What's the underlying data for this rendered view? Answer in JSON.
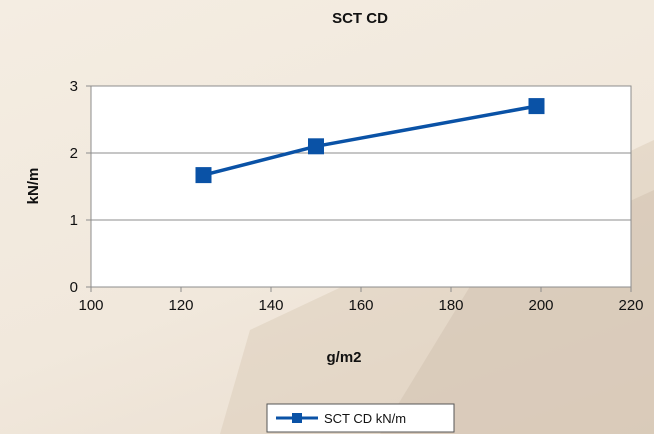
{
  "chart_data": {
    "type": "line",
    "title": "SCT CD",
    "xlabel": "g/m2",
    "ylabel": "kN/m",
    "xlim": [
      100,
      220
    ],
    "ylim": [
      0,
      3
    ],
    "xticks": [
      "100",
      "120",
      "140",
      "160",
      "180",
      "200",
      "220"
    ],
    "yticks": [
      "0",
      "1",
      "2",
      "3"
    ],
    "grid": "horizontal",
    "legend_position": "bottom",
    "series": [
      {
        "name": "SCT CD kN/m",
        "x": [
          125,
          150,
          199
        ],
        "y": [
          1.67,
          2.1,
          2.7
        ],
        "color": "#0a52a6",
        "marker": "square"
      }
    ],
    "colors": {
      "plot_background": "#ffffff",
      "grid": "#8c8c8c",
      "border": "#8c8c8c"
    }
  }
}
